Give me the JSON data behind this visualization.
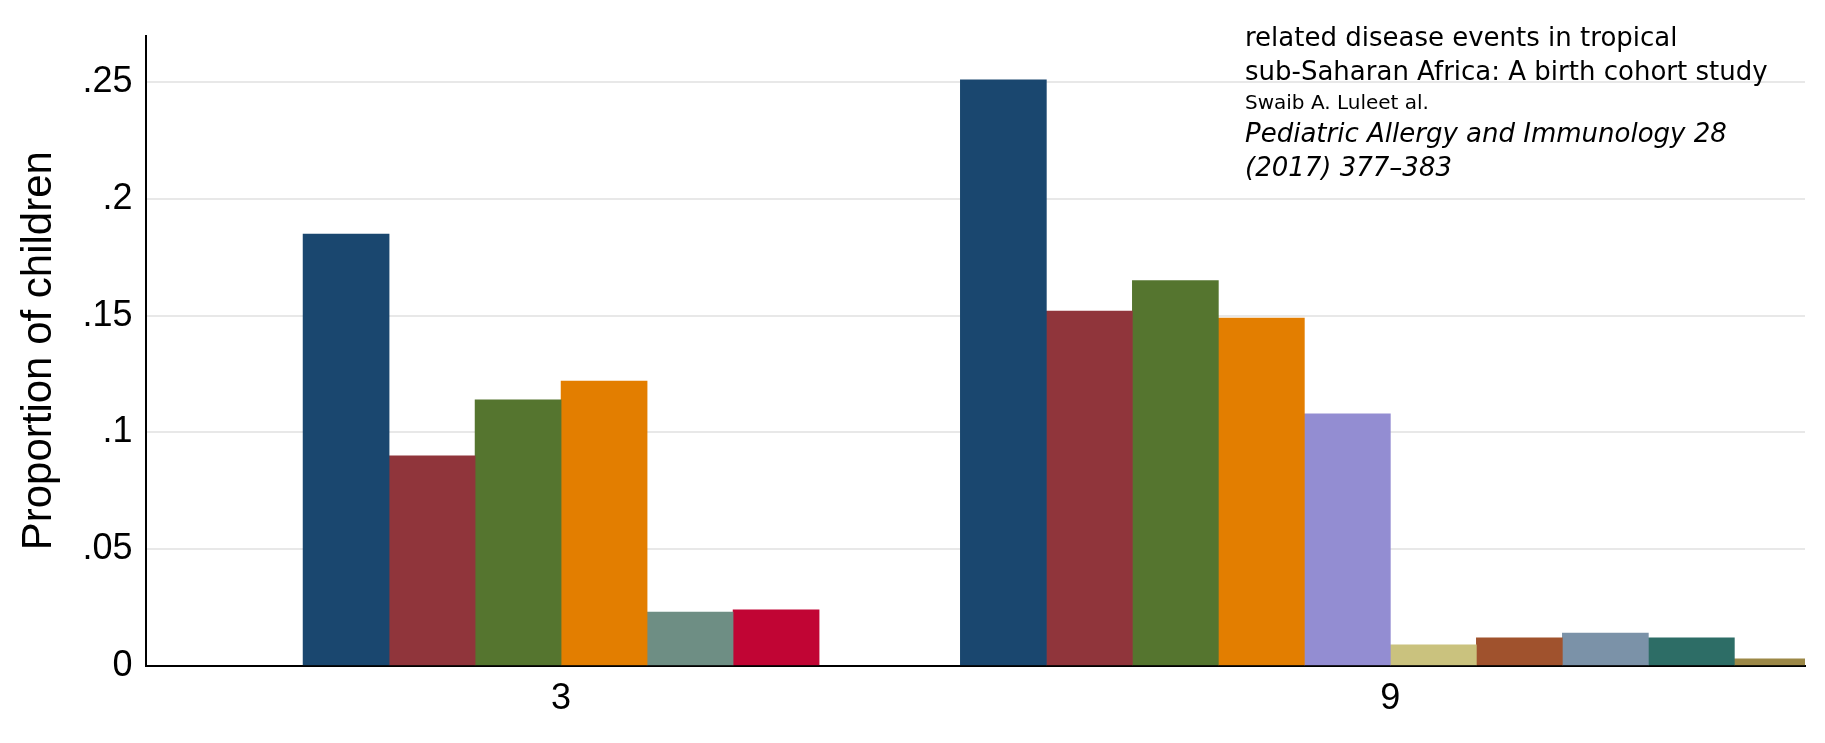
{
  "chart_data": {
    "type": "bar",
    "ylabel": "Proportion of children",
    "categories": [
      "3",
      "9"
    ],
    "series": [
      {
        "color": "#1a476f",
        "values": [
          0.185,
          0.251
        ]
      },
      {
        "color": "#90353b",
        "values": [
          0.09,
          0.152
        ]
      },
      {
        "color": "#55752f",
        "values": [
          0.114,
          0.165
        ]
      },
      {
        "color": "#e37e00",
        "values": [
          0.122,
          0.149
        ]
      },
      {
        "color": "#6e8e84",
        "values": [
          0.023,
          null
        ]
      },
      {
        "color": "#c10534",
        "values": [
          0.024,
          null
        ]
      },
      {
        "color": "#938dd2",
        "values": [
          null,
          0.108
        ]
      },
      {
        "color": "#cac27e",
        "values": [
          null,
          0.009
        ]
      },
      {
        "color": "#a0522d",
        "values": [
          null,
          0.012
        ]
      },
      {
        "color": "#7b92a8",
        "values": [
          null,
          0.014
        ]
      },
      {
        "color": "#2d6d66",
        "values": [
          null,
          0.012
        ]
      },
      {
        "color": "#9c8847",
        "values": [
          null,
          0.003
        ]
      }
    ],
    "ylim": [
      0,
      0.27
    ],
    "yticks": [
      {
        "value": 0,
        "label": "0"
      },
      {
        "value": 0.05,
        "label": ".05"
      },
      {
        "value": 0.1,
        "label": ".1"
      },
      {
        "value": 0.15,
        "label": ".15"
      },
      {
        "value": 0.2,
        "label": ".2"
      },
      {
        "value": 0.25,
        "label": ".25"
      }
    ],
    "grid": "y",
    "legend": false,
    "annotations": [
      "related disease events in tropical sub-Saharan Africa: A birth cohort study",
      "Swaib A. Luleet al.",
      "Pediatric Allergy and Immunology 28 (2017) 377–383"
    ]
  }
}
